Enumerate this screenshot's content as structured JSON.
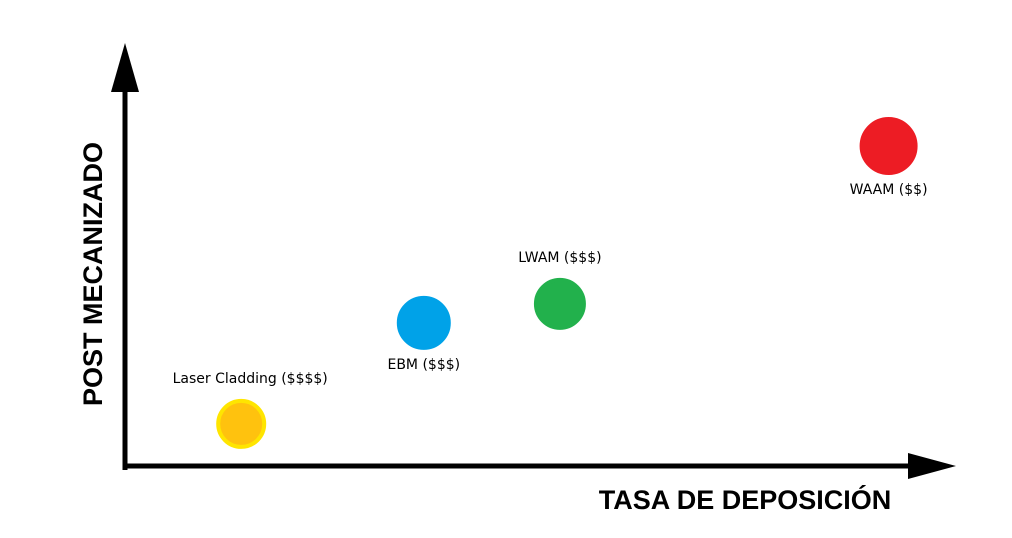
{
  "chart_data": {
    "type": "scatter",
    "xlabel": "TASA DE DEPOSICIÓN",
    "ylabel": "POST MECANIZADO",
    "xlim": [
      0,
      100
    ],
    "ylim": [
      0,
      100
    ],
    "grid": false,
    "points": [
      {
        "label": "Laser Cladding ($$$$)",
        "x": 14,
        "y": 10,
        "color": "#FFC20E",
        "stroke": "#FFE500",
        "label_pos": "above"
      },
      {
        "label": "EBM ($$$)",
        "x": 36,
        "y": 34,
        "color": "#00A2E8",
        "stroke": "#00A2E8",
        "label_pos": "below"
      },
      {
        "label": "LWAM ($$$)",
        "x": 52.4,
        "y": 38.5,
        "color": "#22B14C",
        "stroke": "#22B14C",
        "label_pos": "above"
      },
      {
        "label": "WAAM ($$)",
        "x": 92,
        "y": 76,
        "color": "#ED1C24",
        "stroke": "#ED1C24",
        "label_pos": "below"
      }
    ]
  }
}
